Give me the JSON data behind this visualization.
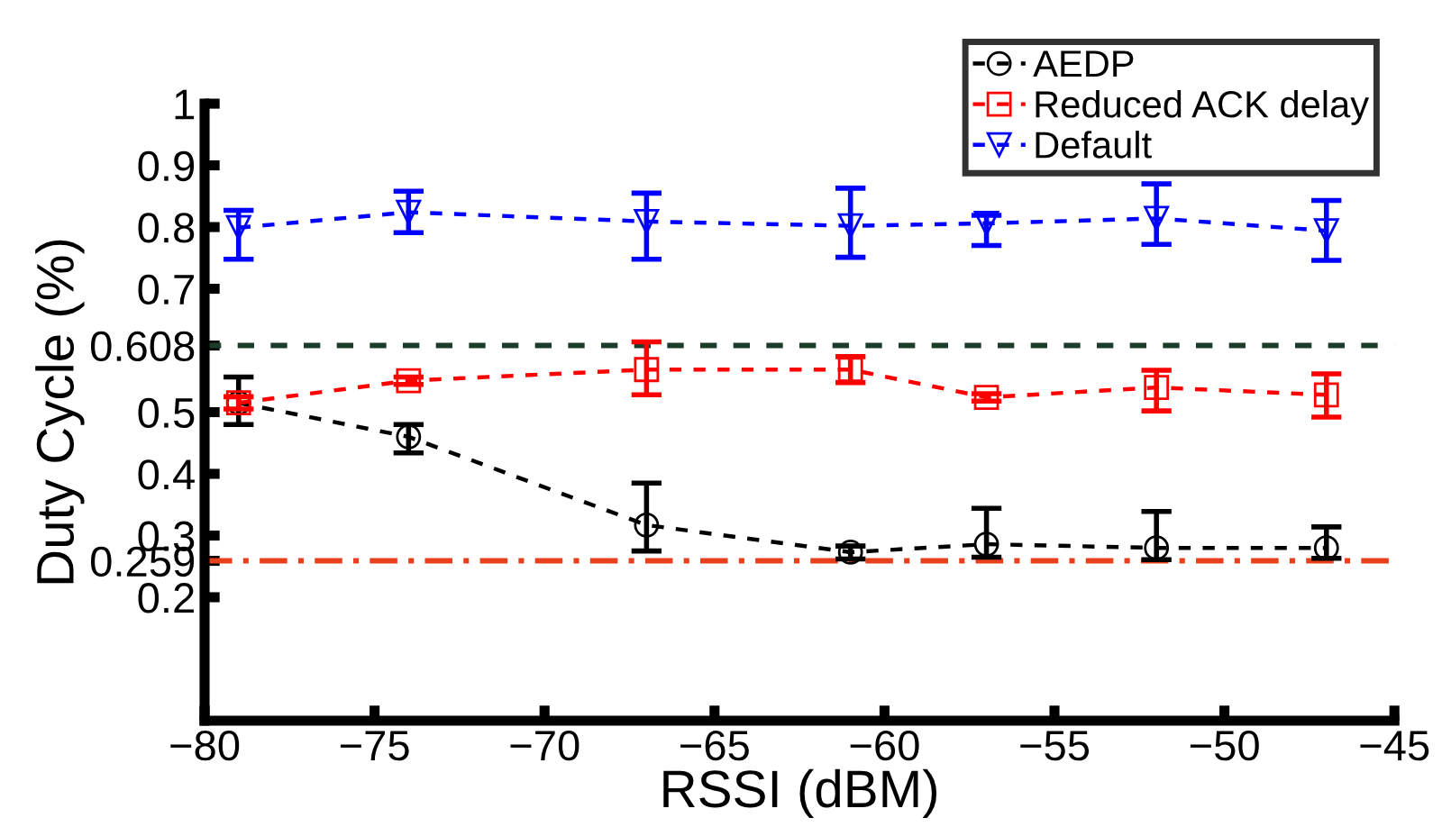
{
  "chart_data": {
    "type": "line",
    "xlabel": "RSSI (dBM)",
    "ylabel": "Duty Cycle (%)",
    "x": [
      -79,
      -74,
      -67,
      -61,
      -57,
      -52,
      -47
    ],
    "xlim": [
      -80,
      -45
    ],
    "xticks": [
      {
        "value": -80,
        "label": "−80"
      },
      {
        "value": -75,
        "label": "−75"
      },
      {
        "value": -70,
        "label": "−70"
      },
      {
        "value": -65,
        "label": "−65"
      },
      {
        "value": -60,
        "label": "−60"
      },
      {
        "value": -55,
        "label": "−55"
      },
      {
        "value": -50,
        "label": "−50"
      },
      {
        "value": -45,
        "label": "−45"
      }
    ],
    "ylim": [
      0,
      1
    ],
    "yticks": [
      0.2,
      0.259,
      0.3,
      0.4,
      0.5,
      0.608,
      0.7,
      0.8,
      0.9,
      1
    ],
    "grid": false,
    "legend": "top right",
    "line_style": "dashed",
    "series": [
      {
        "name": "AEDP",
        "color": "#000000",
        "marker": "circle",
        "values": [
          0.515,
          0.46,
          0.317,
          0.273,
          0.286,
          0.28,
          0.28
        ],
        "errors": [
          [
            0.48,
            0.557
          ],
          [
            0.434,
            0.48
          ],
          [
            0.275,
            0.385
          ],
          [
            0.262,
            0.283
          ],
          [
            0.265,
            0.344
          ],
          [
            0.261,
            0.339
          ],
          [
            0.263,
            0.314
          ]
        ]
      },
      {
        "name": "Reduced ACK delay",
        "color": "#ff0000",
        "marker": "square",
        "values": [
          0.515,
          0.551,
          0.569,
          0.569,
          0.524,
          0.54,
          0.528
        ],
        "errors": [
          [
            0.505,
            0.525
          ],
          [
            0.545,
            0.557
          ],
          [
            0.528,
            0.614
          ],
          [
            0.548,
            0.59
          ],
          [
            0.518,
            0.53
          ],
          [
            0.502,
            0.568
          ],
          [
            0.492,
            0.562
          ]
        ]
      },
      {
        "name": "Default",
        "color": "#0000ff",
        "marker": "triangle",
        "values": [
          0.799,
          0.824,
          0.809,
          0.802,
          0.806,
          0.814,
          0.794
        ],
        "errors": [
          [
            0.748,
            0.827
          ],
          [
            0.791,
            0.858
          ],
          [
            0.748,
            0.855
          ],
          [
            0.751,
            0.863
          ],
          [
            0.77,
            0.819
          ],
          [
            0.772,
            0.87
          ],
          [
            0.746,
            0.843
          ]
        ]
      }
    ],
    "ref_lines": [
      {
        "axis": "y",
        "value": 0.608,
        "color": "#1c3d2c",
        "line_style": "dashed"
      },
      {
        "axis": "y",
        "value": 0.259,
        "color": "#e8401c",
        "line_style": "dashdot"
      }
    ]
  }
}
